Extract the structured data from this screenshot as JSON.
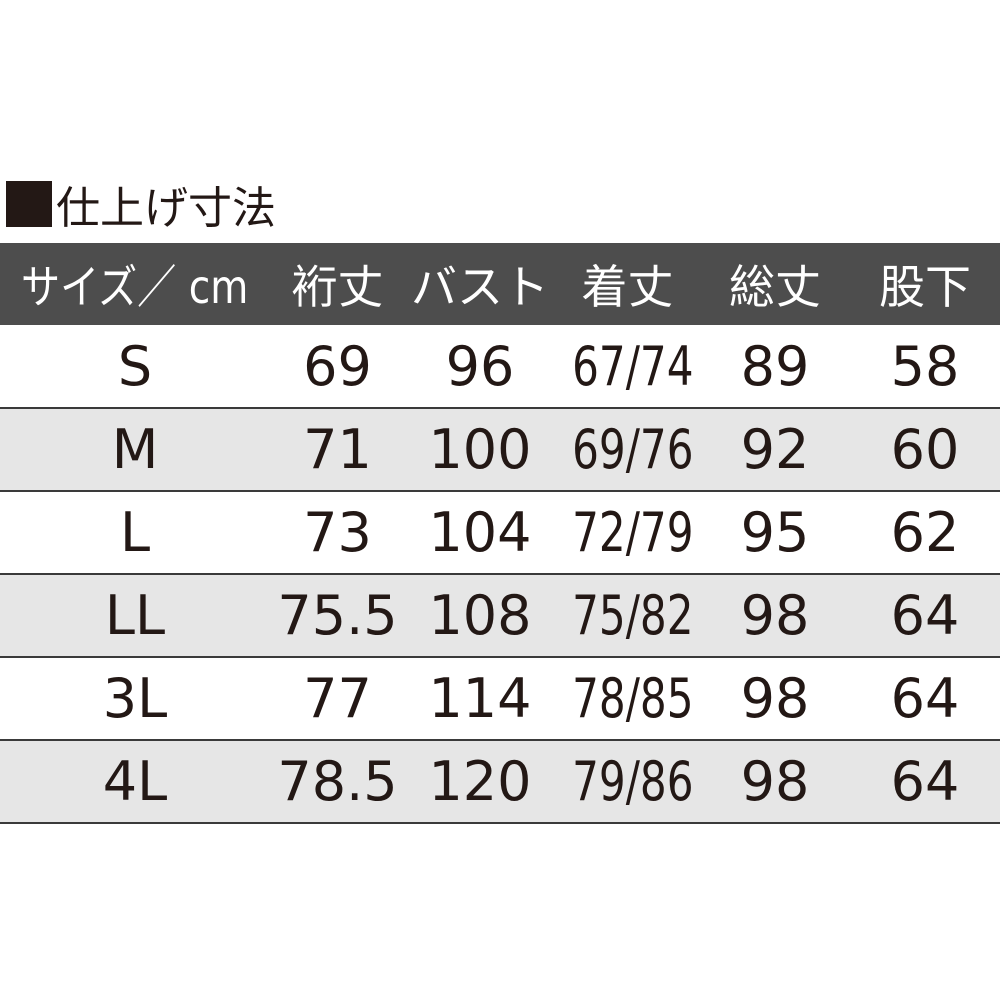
{
  "title": "仕上げ寸法",
  "title_marker_icon": "black-square",
  "colors": {
    "header_bg": "#4d4d4d",
    "header_text": "#ffffff",
    "text": "#231815",
    "alt_row_bg": "#e6e6e6"
  },
  "table": {
    "headers": [
      "サイズ／ cm",
      "裄丈",
      "バスト",
      "着丈",
      "総丈",
      "股下"
    ],
    "rows": [
      [
        "S",
        "69",
        "96",
        "67/74",
        "89",
        "58"
      ],
      [
        "M",
        "71",
        "100",
        "69/76",
        "92",
        "60"
      ],
      [
        "L",
        "73",
        "104",
        "72/79",
        "95",
        "62"
      ],
      [
        "LL",
        "75.5",
        "108",
        "75/82",
        "98",
        "64"
      ],
      [
        "3L",
        "77",
        "114",
        "78/85",
        "98",
        "64"
      ],
      [
        "4L",
        "78.5",
        "120",
        "79/86",
        "98",
        "64"
      ]
    ]
  }
}
